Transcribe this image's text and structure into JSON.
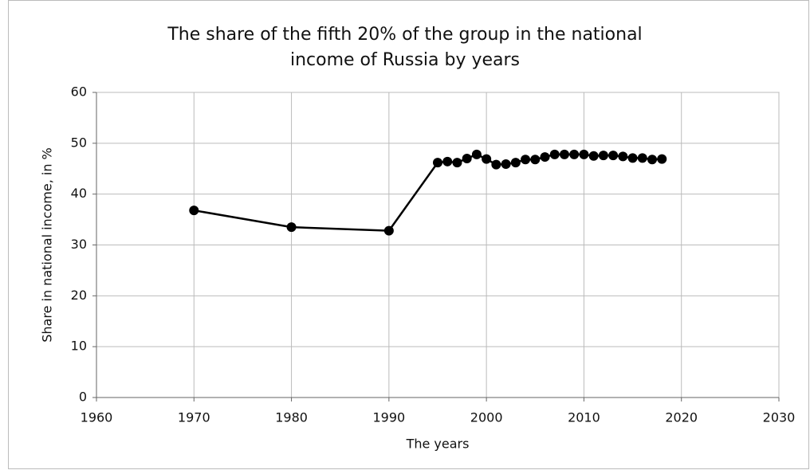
{
  "chart_data": {
    "type": "line",
    "title": "The share of the fifth 20% of the group in the national income of Russia by years",
    "x_label": "The years",
    "y_label": "Share in national income, in %",
    "x": [
      1970,
      1980,
      1990,
      1995,
      1996,
      1997,
      1998,
      1999,
      2000,
      2001,
      2002,
      2003,
      2004,
      2005,
      2006,
      2007,
      2008,
      2009,
      2010,
      2011,
      2012,
      2013,
      2014,
      2015,
      2016,
      2017,
      2018
    ],
    "series": [
      {
        "name": "Share",
        "color": "#000000",
        "values": [
          36.8,
          33.5,
          32.8,
          46.2,
          46.4,
          46.2,
          47.0,
          47.8,
          46.9,
          45.8,
          45.9,
          46.2,
          46.8,
          46.8,
          47.3,
          47.8,
          47.8,
          47.8,
          47.8,
          47.5,
          47.6,
          47.6,
          47.4,
          47.1,
          47.1,
          46.8,
          46.9
        ]
      }
    ],
    "xlim": [
      1960,
      2030
    ],
    "xticks": [
      1960,
      1970,
      1980,
      1990,
      2000,
      2010,
      2020,
      2030
    ],
    "ylim": [
      0,
      60
    ],
    "yticks": [
      0,
      10,
      20,
      30,
      40,
      50,
      60
    ],
    "grid": true,
    "markers": true
  }
}
